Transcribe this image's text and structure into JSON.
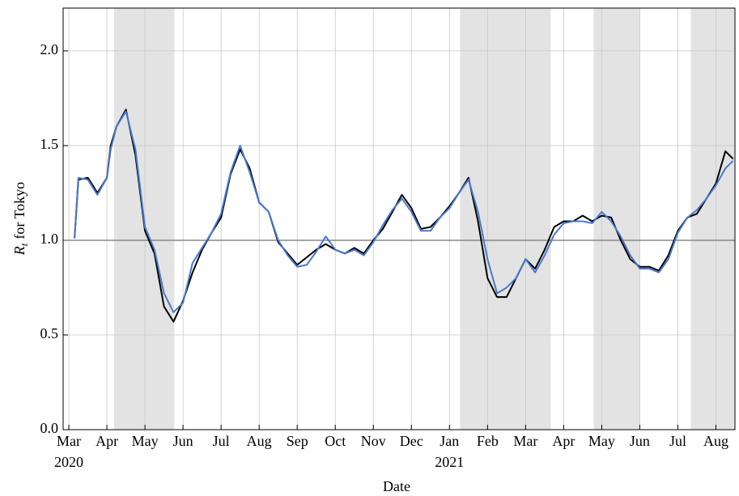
{
  "chart_data": {
    "type": "line",
    "ylabel": {
      "symbol": "R",
      "subscript": "t",
      "rest": "for Tokyo"
    },
    "xlabel": "Date",
    "x": [
      0.15,
      0.25,
      0.5,
      0.75,
      1.0,
      1.1,
      1.25,
      1.5,
      1.75,
      2.0,
      2.25,
      2.5,
      2.75,
      3.0,
      3.25,
      3.5,
      3.75,
      4.0,
      4.25,
      4.5,
      4.75,
      5.0,
      5.25,
      5.5,
      5.75,
      6.0,
      6.25,
      6.5,
      6.75,
      7.0,
      7.25,
      7.5,
      7.75,
      8.0,
      8.25,
      8.5,
      8.75,
      9.0,
      9.25,
      9.5,
      9.75,
      10.0,
      10.25,
      10.5,
      10.75,
      11.0,
      11.25,
      11.5,
      11.75,
      12.0,
      12.25,
      12.5,
      12.75,
      13.0,
      13.25,
      13.5,
      13.75,
      14.0,
      14.25,
      14.5,
      14.75,
      15.0,
      15.25,
      15.5,
      15.75,
      16.0,
      16.25,
      16.5,
      16.75,
      17.0,
      17.25,
      17.45
    ],
    "series": [
      {
        "color": "#000000",
        "values": [
          1.01,
          1.32,
          1.33,
          1.25,
          1.33,
          1.5,
          1.6,
          1.69,
          1.45,
          1.05,
          0.93,
          0.65,
          0.57,
          0.68,
          0.83,
          0.95,
          1.04,
          1.12,
          1.35,
          1.48,
          1.38,
          1.2,
          1.15,
          0.99,
          0.93,
          0.87,
          0.91,
          0.95,
          0.98,
          0.95,
          0.93,
          0.96,
          0.93,
          1.0,
          1.06,
          1.15,
          1.24,
          1.17,
          1.06,
          1.07,
          1.12,
          1.18,
          1.25,
          1.33,
          1.1,
          0.8,
          0.7,
          0.7,
          0.8,
          0.9,
          0.85,
          0.95,
          1.07,
          1.1,
          1.1,
          1.13,
          1.1,
          1.13,
          1.12,
          1.0,
          0.9,
          0.86,
          0.86,
          0.84,
          0.92,
          1.05,
          1.12,
          1.14,
          1.22,
          1.3,
          1.47,
          1.43
        ]
      },
      {
        "color": "#4a78cf",
        "values": [
          1.01,
          1.33,
          1.32,
          1.24,
          1.33,
          1.48,
          1.6,
          1.68,
          1.48,
          1.07,
          0.95,
          0.72,
          0.62,
          0.67,
          0.88,
          0.96,
          1.04,
          1.14,
          1.36,
          1.5,
          1.36,
          1.2,
          1.15,
          1.0,
          0.92,
          0.86,
          0.87,
          0.94,
          1.02,
          0.95,
          0.93,
          0.95,
          0.92,
          0.99,
          1.08,
          1.16,
          1.22,
          1.15,
          1.05,
          1.05,
          1.12,
          1.17,
          1.25,
          1.32,
          1.15,
          0.9,
          0.72,
          0.75,
          0.8,
          0.9,
          0.83,
          0.92,
          1.03,
          1.09,
          1.1,
          1.1,
          1.09,
          1.15,
          1.1,
          1.02,
          0.92,
          0.85,
          0.85,
          0.83,
          0.9,
          1.04,
          1.12,
          1.16,
          1.22,
          1.29,
          1.38,
          1.42
        ]
      }
    ],
    "xlim": [
      -0.15,
      17.5
    ],
    "ylim": [
      0,
      2.226
    ],
    "xticks": [
      {
        "value": 0,
        "label": "Mar"
      },
      {
        "value": 1,
        "label": "Apr"
      },
      {
        "value": 2,
        "label": "May"
      },
      {
        "value": 3,
        "label": "Jun"
      },
      {
        "value": 4,
        "label": "Jul"
      },
      {
        "value": 5,
        "label": "Aug"
      },
      {
        "value": 6,
        "label": "Sep"
      },
      {
        "value": 7,
        "label": "Oct"
      },
      {
        "value": 8,
        "label": "Nov"
      },
      {
        "value": 9,
        "label": "Dec"
      },
      {
        "value": 10,
        "label": "Jan"
      },
      {
        "value": 11,
        "label": "Feb"
      },
      {
        "value": 12,
        "label": "Mar"
      },
      {
        "value": 13,
        "label": "Apr"
      },
      {
        "value": 14,
        "label": "May"
      },
      {
        "value": 15,
        "label": "Jun"
      },
      {
        "value": 16,
        "label": "Jul"
      },
      {
        "value": 17,
        "label": "Aug"
      }
    ],
    "x_year_labels": [
      {
        "value": 0,
        "label": "2020"
      },
      {
        "value": 10,
        "label": "2021"
      }
    ],
    "yticks": [
      {
        "value": 0,
        "label": "0.0"
      },
      0.5,
      {
        "value": 1,
        "label": "1.0"
      },
      1.5,
      {
        "value": 2,
        "label": "2.0"
      }
    ],
    "shaded_spans": [
      [
        1.19,
        2.77
      ],
      [
        10.28,
        12.66
      ],
      [
        13.79,
        15.0
      ],
      [
        16.34,
        17.5
      ]
    ],
    "shade_color": "#e3e3e3",
    "hline": 1,
    "grid": true
  }
}
